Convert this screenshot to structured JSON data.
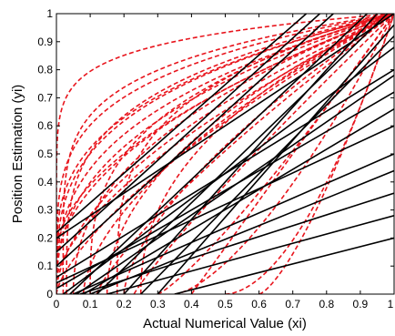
{
  "chart_data": {
    "type": "line",
    "title": "",
    "xlabel": "Actual Numerical Value (xi)",
    "ylabel": "Position Estimation (yi)",
    "xlim": [
      0,
      1
    ],
    "ylim": [
      0,
      1
    ],
    "x_ticks": [
      "0",
      "0.1",
      "0.2",
      "0.3",
      "0.4",
      "0.5",
      "0.6",
      "0.7",
      "0.8",
      "0.9",
      "1"
    ],
    "y_ticks": [
      "0",
      "0.1",
      "0.2",
      "0.3",
      "0.4",
      "0.5",
      "0.6",
      "0.7",
      "0.8",
      "0.9",
      "1"
    ],
    "grid": false,
    "legend": "none",
    "colors": {
      "linear": "#000000",
      "curved": "#e8141c",
      "axes": "#000000"
    },
    "series_groups": [
      {
        "style": "solid",
        "color": "#000000",
        "form": "linear",
        "lines": [
          {
            "x": [
              0,
              1
            ],
            "y": [
              0.2,
              1.0
            ]
          },
          {
            "x": [
              0,
              0.78
            ],
            "y": [
              0.15,
              1.0
            ]
          },
          {
            "x": [
              0,
              0.82
            ],
            "y": [
              0.1,
              1.0
            ]
          },
          {
            "x": [
              0,
              1
            ],
            "y": [
              0.02,
              0.72
            ]
          },
          {
            "x": [
              0.02,
              1
            ],
            "y": [
              0.0,
              0.88
            ]
          },
          {
            "x": [
              0.04,
              0.92
            ],
            "y": [
              0.0,
              1.0
            ]
          },
          {
            "x": [
              0,
              1
            ],
            "y": [
              0.06,
              0.8
            ]
          },
          {
            "x": [
              0,
              1
            ],
            "y": [
              0.04,
              0.6
            ]
          },
          {
            "x": [
              0.06,
              1
            ],
            "y": [
              0.0,
              0.78
            ]
          },
          {
            "x": [
              0.08,
              1
            ],
            "y": [
              0.0,
              0.66
            ]
          },
          {
            "x": [
              0.05,
              1
            ],
            "y": [
              0.0,
              0.5
            ]
          },
          {
            "x": [
              0.1,
              1
            ],
            "y": [
              0.0,
              0.44
            ]
          },
          {
            "x": [
              0.07,
              1
            ],
            "y": [
              0.0,
              0.36
            ]
          },
          {
            "x": [
              0.15,
              1
            ],
            "y": [
              0.0,
              0.28
            ]
          },
          {
            "x": [
              0.35,
              1
            ],
            "y": [
              0.0,
              0.2
            ]
          },
          {
            "x": [
              0.25,
              1
            ],
            "y": [
              0.0,
              0.92
            ]
          },
          {
            "x": [
              0.2,
              0.95
            ],
            "y": [
              0.0,
              1.0
            ]
          },
          {
            "x": [
              0.3,
              1
            ],
            "y": [
              0.0,
              0.96
            ]
          },
          {
            "x": [
              0,
              0.74
            ],
            "y": [
              0.22,
              1.0
            ]
          },
          {
            "x": [
              0.12,
              0.98
            ],
            "y": [
              0.0,
              1.0
            ]
          }
        ]
      },
      {
        "style": "dashed",
        "color": "#e8141c",
        "form": "power",
        "note_formula": "y = s + (1 - s) * ((x - x0) / (1 - x0)) ^ p",
        "curves": [
          {
            "x0": 0.0,
            "s": 0.0,
            "p": 0.1
          },
          {
            "x0": 0.0,
            "s": 0.0,
            "p": 0.22
          },
          {
            "x0": 0.0,
            "s": 0.0,
            "p": 0.3
          },
          {
            "x0": 0.0,
            "s": 0.0,
            "p": 0.4
          },
          {
            "x0": 0.0,
            "s": 0.0,
            "p": 0.55
          },
          {
            "x0": 0.0,
            "s": 0.0,
            "p": 0.7
          },
          {
            "x0": 0.0,
            "s": 0.0,
            "p": 0.35
          },
          {
            "x0": 0.02,
            "s": 0.0,
            "p": 0.18
          },
          {
            "x0": 0.03,
            "s": 0.0,
            "p": 0.26
          },
          {
            "x0": 0.05,
            "s": 0.0,
            "p": 0.45
          },
          {
            "x0": 0.08,
            "s": 0.0,
            "p": 0.6
          },
          {
            "x0": 0.1,
            "s": 0.0,
            "p": 0.32
          },
          {
            "x0": 0.12,
            "s": 0.0,
            "p": 0.8
          },
          {
            "x0": 0.15,
            "s": 0.0,
            "p": 0.5
          },
          {
            "x0": 0.18,
            "s": 0.0,
            "p": 0.28
          },
          {
            "x0": 0.2,
            "s": 0.0,
            "p": 0.65
          },
          {
            "x0": 0.23,
            "s": 0.0,
            "p": 0.9
          },
          {
            "x0": 0.25,
            "s": 0.0,
            "p": 0.45
          },
          {
            "x0": 0.3,
            "s": 0.0,
            "p": 1.2
          },
          {
            "x0": 0.35,
            "s": 0.0,
            "p": 1.5
          },
          {
            "x0": 0.4,
            "s": 0.0,
            "p": 1.0
          },
          {
            "x0": 0.5,
            "s": 0.0,
            "p": 1.8
          },
          {
            "x0": 0.6,
            "s": 0.0,
            "p": 1.4
          },
          {
            "x0": 0.0,
            "s": 0.08,
            "p": 0.5
          },
          {
            "x0": 0.0,
            "s": 0.1,
            "p": 0.33
          },
          {
            "x0": 0.0,
            "s": 0.15,
            "p": 0.55
          },
          {
            "x0": 0.0,
            "s": 0.05,
            "p": 0.65
          }
        ]
      }
    ]
  }
}
